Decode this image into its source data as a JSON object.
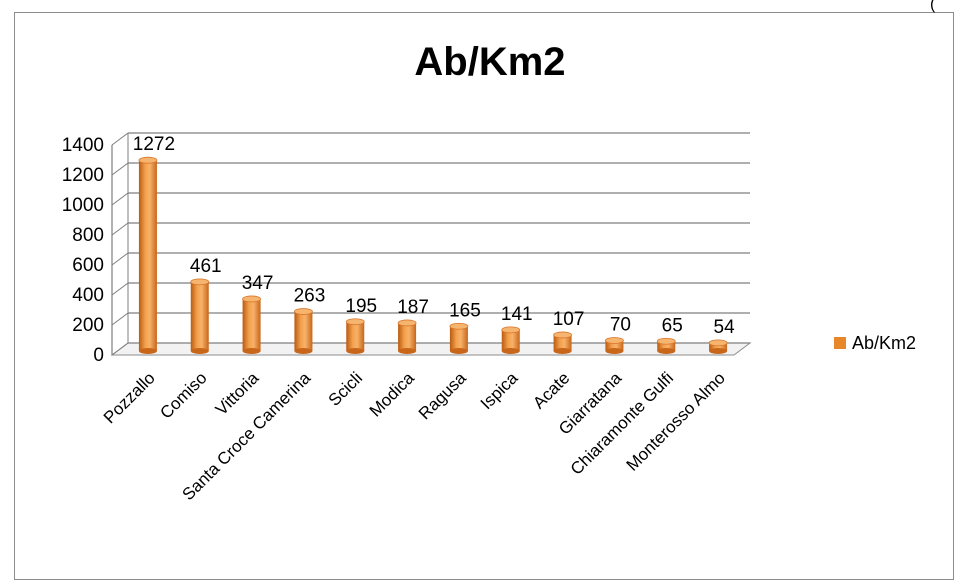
{
  "corner_text": "(",
  "chart_data": {
    "type": "bar",
    "title": "Ab/Km2",
    "xlabel": "",
    "ylabel": "",
    "categories": [
      "Pozzallo",
      "Comiso",
      "Vittoria",
      "Santa Croce Camerina",
      "Scicli",
      "Modica",
      "Ragusa",
      "Ispica",
      "Acate",
      "Giarratana",
      "Chiaramonte Gulfi",
      "Monterosso Almo"
    ],
    "series": [
      {
        "name": "Ab/Km2",
        "values": [
          1272,
          461,
          347,
          263,
          195,
          187,
          165,
          141,
          107,
          70,
          65,
          54
        ],
        "color": "#e8862a"
      }
    ],
    "ylim": [
      0,
      1400
    ],
    "yticks": [
      0,
      200,
      400,
      600,
      800,
      1000,
      1200,
      1400
    ],
    "data_labels": true,
    "grid": true,
    "legend_position": "right",
    "style": "3d-cylinder"
  }
}
